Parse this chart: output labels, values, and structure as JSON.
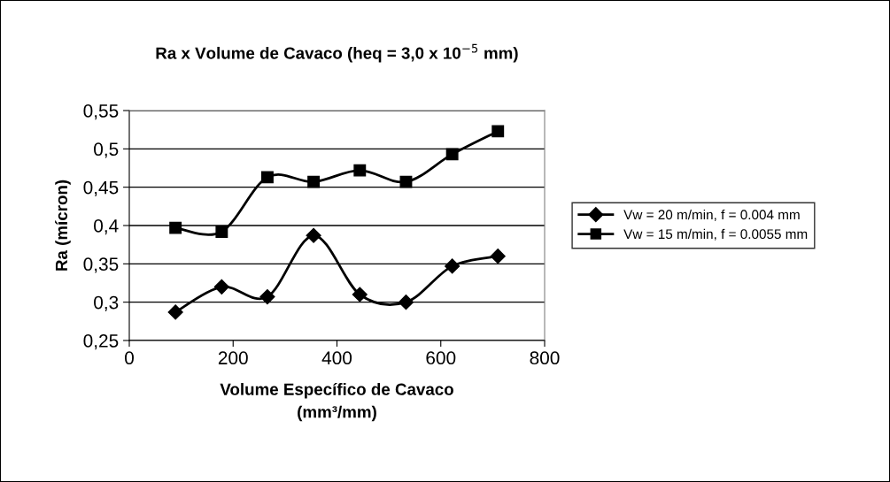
{
  "chart_data": {
    "type": "line",
    "title": "Ra x Volume de Cavaco (heq = 3,0 x 10$^{−5}$ mm)",
    "xlabel": "Volume Específico de Cavaco\n(mm³/mm)",
    "ylabel": "Ra (mícron)",
    "x": [
      89,
      178,
      266,
      355,
      444,
      533,
      622,
      710
    ],
    "series": [
      {
        "name": "Vw = 20 m/min, f = 0.004 mm",
        "color": "#000000",
        "marker": "diamond",
        "values": [
          0.287,
          0.32,
          0.307,
          0.387,
          0.31,
          0.3,
          0.347,
          0.36
        ]
      },
      {
        "name": "Vw = 15 m/min, f = 0.0055 mm",
        "color": "#000000",
        "marker": "square",
        "values": [
          0.397,
          0.392,
          0.463,
          0.457,
          0.472,
          0.457,
          0.493,
          0.523
        ]
      }
    ],
    "xlim": [
      0,
      800
    ],
    "xticks": [
      0,
      200,
      400,
      600,
      800
    ],
    "ylim": [
      0.25,
      0.55
    ],
    "yticks": [
      {
        "value": 0.25,
        "label": "0,25"
      },
      {
        "value": 0.3,
        "label": "0,3"
      },
      {
        "value": 0.35,
        "label": "0,35"
      },
      {
        "value": 0.4,
        "label": "0,4"
      },
      {
        "value": 0.45,
        "label": "0,45"
      },
      {
        "value": 0.5,
        "label": "0,5"
      },
      {
        "value": 0.55,
        "label": "0,55"
      }
    ],
    "grid": "y",
    "legend": "right",
    "line_style": "solid"
  }
}
